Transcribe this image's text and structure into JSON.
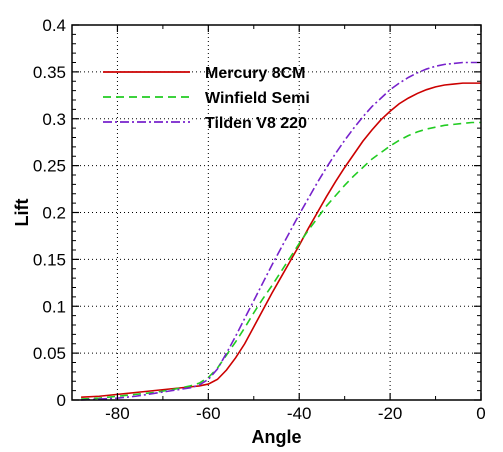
{
  "chart_data": {
    "type": "line",
    "xlabel": "Angle",
    "ylabel": "Lift",
    "xlim": [
      -90,
      0
    ],
    "ylim": [
      0,
      0.4
    ],
    "x_ticks": [
      -80,
      -60,
      -40,
      -20,
      0
    ],
    "x_tick_labels": [
      "-80",
      "-60",
      "-40",
      "-20",
      "0"
    ],
    "y_ticks": [
      0,
      0.05,
      0.1,
      0.15,
      0.2,
      0.25,
      0.3,
      0.35,
      0.4
    ],
    "y_tick_labels": [
      "0",
      "0.05",
      "0.1",
      "0.15",
      "0.2",
      "0.25",
      "0.3",
      "0.35",
      "0.4"
    ],
    "grid": true,
    "grid_style": "dotted",
    "legend_position": "top-left",
    "series": [
      {
        "name": "Mercury 8CM",
        "color": "#cc0000",
        "dash": "solid",
        "x": [
          -88,
          -84,
          -80,
          -76,
          -72,
          -68,
          -64,
          -62,
          -60,
          -58,
          -56,
          -54,
          -52,
          -50,
          -48,
          -46,
          -44,
          -42,
          -40,
          -38,
          -36,
          -34,
          -32,
          -30,
          -28,
          -26,
          -24,
          -22,
          -20,
          -18,
          -16,
          -14,
          -12,
          -10,
          -8,
          -6,
          -4,
          -2,
          0
        ],
        "y": [
          0.003,
          0.004,
          0.006,
          0.008,
          0.01,
          0.012,
          0.014,
          0.015,
          0.017,
          0.022,
          0.032,
          0.045,
          0.06,
          0.078,
          0.096,
          0.114,
          0.131,
          0.148,
          0.165,
          0.183,
          0.2,
          0.217,
          0.233,
          0.248,
          0.262,
          0.276,
          0.288,
          0.299,
          0.308,
          0.316,
          0.322,
          0.327,
          0.331,
          0.334,
          0.336,
          0.337,
          0.338,
          0.338,
          0.338
        ]
      },
      {
        "name": "Winfield Semi",
        "color": "#22cc22",
        "dash": "8,5",
        "x": [
          -88,
          -84,
          -80,
          -76,
          -72,
          -68,
          -64,
          -62,
          -60,
          -58,
          -56,
          -54,
          -52,
          -50,
          -48,
          -46,
          -44,
          -42,
          -40,
          -38,
          -36,
          -34,
          -32,
          -30,
          -28,
          -26,
          -24,
          -22,
          -20,
          -18,
          -16,
          -14,
          -12,
          -10,
          -8,
          -6,
          -4,
          -2,
          0
        ],
        "y": [
          0.001,
          0.002,
          0.004,
          0.006,
          0.008,
          0.011,
          0.015,
          0.018,
          0.024,
          0.034,
          0.048,
          0.062,
          0.077,
          0.093,
          0.108,
          0.122,
          0.137,
          0.152,
          0.167,
          0.181,
          0.194,
          0.207,
          0.218,
          0.229,
          0.239,
          0.248,
          0.257,
          0.264,
          0.271,
          0.277,
          0.282,
          0.286,
          0.289,
          0.291,
          0.293,
          0.294,
          0.295,
          0.296,
          0.296
        ]
      },
      {
        "name": "Tilden V8 220",
        "color": "#7722cc",
        "dash": "9,3,2,3",
        "x": [
          -88,
          -84,
          -80,
          -76,
          -72,
          -68,
          -64,
          -62,
          -60,
          -58,
          -56,
          -54,
          -52,
          -50,
          -48,
          -46,
          -44,
          -42,
          -40,
          -38,
          -36,
          -34,
          -32,
          -30,
          -28,
          -26,
          -24,
          -22,
          -20,
          -18,
          -16,
          -14,
          -12,
          -10,
          -8,
          -6,
          -4,
          -2,
          0
        ],
        "y": [
          0.0,
          0.001,
          0.002,
          0.004,
          0.007,
          0.01,
          0.013,
          0.016,
          0.022,
          0.033,
          0.05,
          0.068,
          0.087,
          0.106,
          0.125,
          0.144,
          0.162,
          0.18,
          0.198,
          0.215,
          0.232,
          0.248,
          0.263,
          0.277,
          0.29,
          0.302,
          0.313,
          0.322,
          0.331,
          0.338,
          0.344,
          0.349,
          0.353,
          0.356,
          0.358,
          0.359,
          0.36,
          0.36,
          0.36
        ]
      }
    ]
  }
}
